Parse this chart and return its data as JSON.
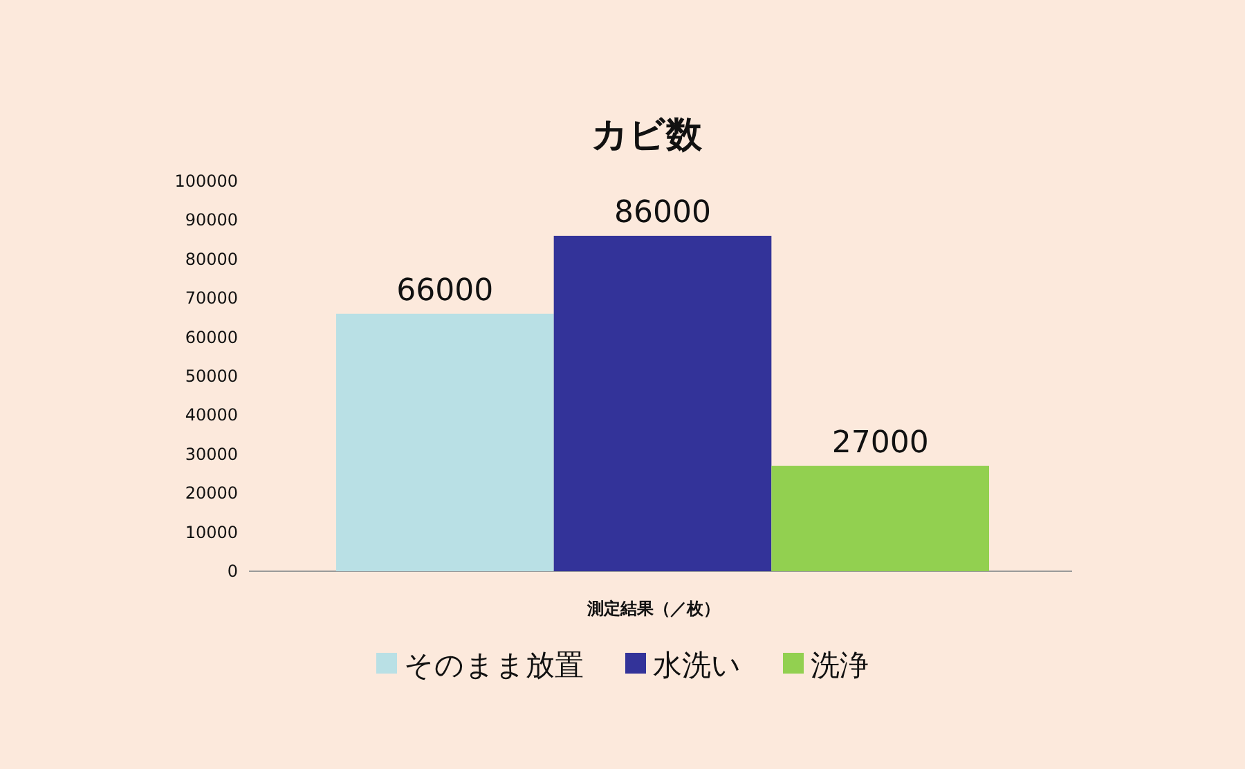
{
  "chart_data": {
    "type": "bar",
    "title": "カビ数",
    "xlabel": "測定結果（／枚）",
    "categories": [
      null
    ],
    "series": [
      {
        "name": "そのまま放置",
        "color": "#b9e0e5",
        "values": [
          66000
        ]
      },
      {
        "name": "水洗い",
        "color": "#333399",
        "values": [
          86000
        ]
      },
      {
        "name": "洗浄",
        "color": "#92d050",
        "values": [
          27000
        ]
      }
    ],
    "ylim": [
      0,
      100000
    ],
    "yticks": [
      0,
      10000,
      20000,
      30000,
      40000,
      50000,
      60000,
      70000,
      80000,
      90000,
      100000
    ],
    "data_labels": true,
    "legend": "bottom"
  }
}
